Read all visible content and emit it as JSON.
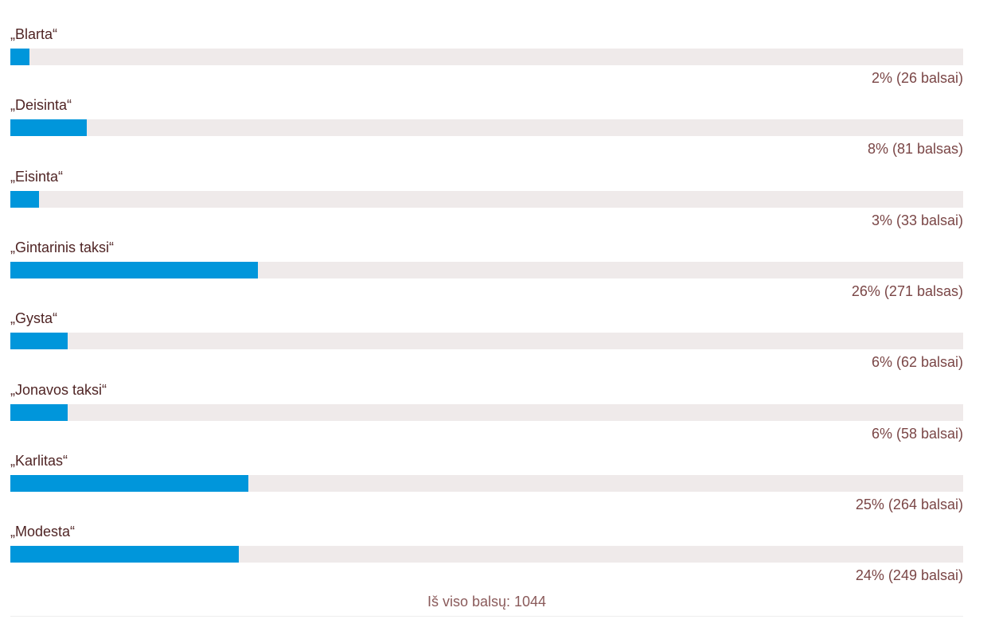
{
  "chart_data": {
    "type": "bar",
    "orientation": "horizontal",
    "categories": [
      "„Blarta“",
      "„Deisinta“",
      "„Eisinta“",
      "„Gintarinis taksi“",
      "„Gysta“",
      "„Jonavos taksi“",
      "„Karlitas“",
      "„Modesta“"
    ],
    "values": [
      2,
      8,
      3,
      26,
      6,
      6,
      25,
      24
    ],
    "value_labels": [
      "2% (26 balsai)",
      "8% (81 balsas)",
      "3% (33 balsai)",
      "26% (271 balsas)",
      "6% (62 balsai)",
      "6% (58 balsai)",
      "25% (264 balsai)",
      "24% (249 balsai)"
    ],
    "xlim": [
      0,
      100
    ],
    "color": "#0096db",
    "track_color": "#efeaea",
    "footer": "Iš viso balsų: 1044"
  }
}
